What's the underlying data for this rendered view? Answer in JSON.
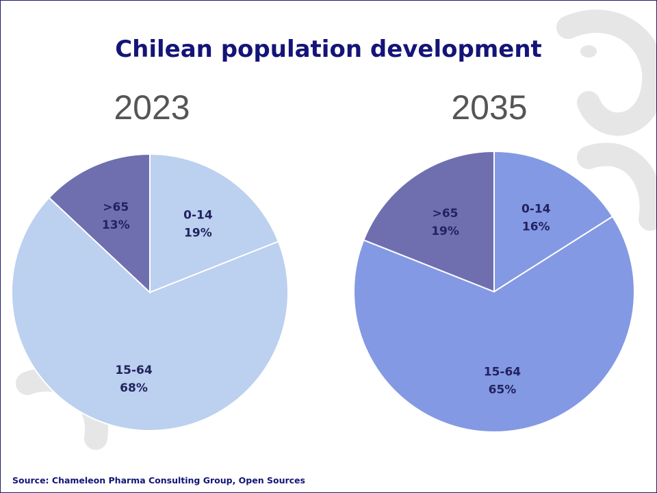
{
  "page": {
    "title": "Chilean population development",
    "source": "Source: Chameleon Pharma Consulting Group, Open Sources"
  },
  "colors": {
    "title": "#141478",
    "year": "#555555",
    "label": "#22225e",
    "pie2023": {
      "0-14": "#bcd0ef",
      "15-64": "#bcd0ef",
      ">65": "#6f6fb0"
    },
    "pie2035": {
      "0-14": "#8499e4",
      "15-64": "#8499e4",
      ">65": "#6f6fb0"
    },
    "watermark": "#e6e6e6"
  },
  "chart_data": [
    {
      "type": "pie",
      "title": "2023",
      "slices": [
        {
          "label": "0-14",
          "value": 19,
          "display": "19%"
        },
        {
          "label": "15-64",
          "value": 68,
          "display": "68%"
        },
        {
          "label": ">65",
          "value": 13,
          "display": "13%"
        }
      ]
    },
    {
      "type": "pie",
      "title": "2035",
      "slices": [
        {
          "label": "0-14",
          "value": 16,
          "display": "16%"
        },
        {
          "label": "15-64",
          "value": 65,
          "display": "65%"
        },
        {
          "label": ">65",
          "value": 19,
          "display": "19%"
        }
      ]
    }
  ]
}
